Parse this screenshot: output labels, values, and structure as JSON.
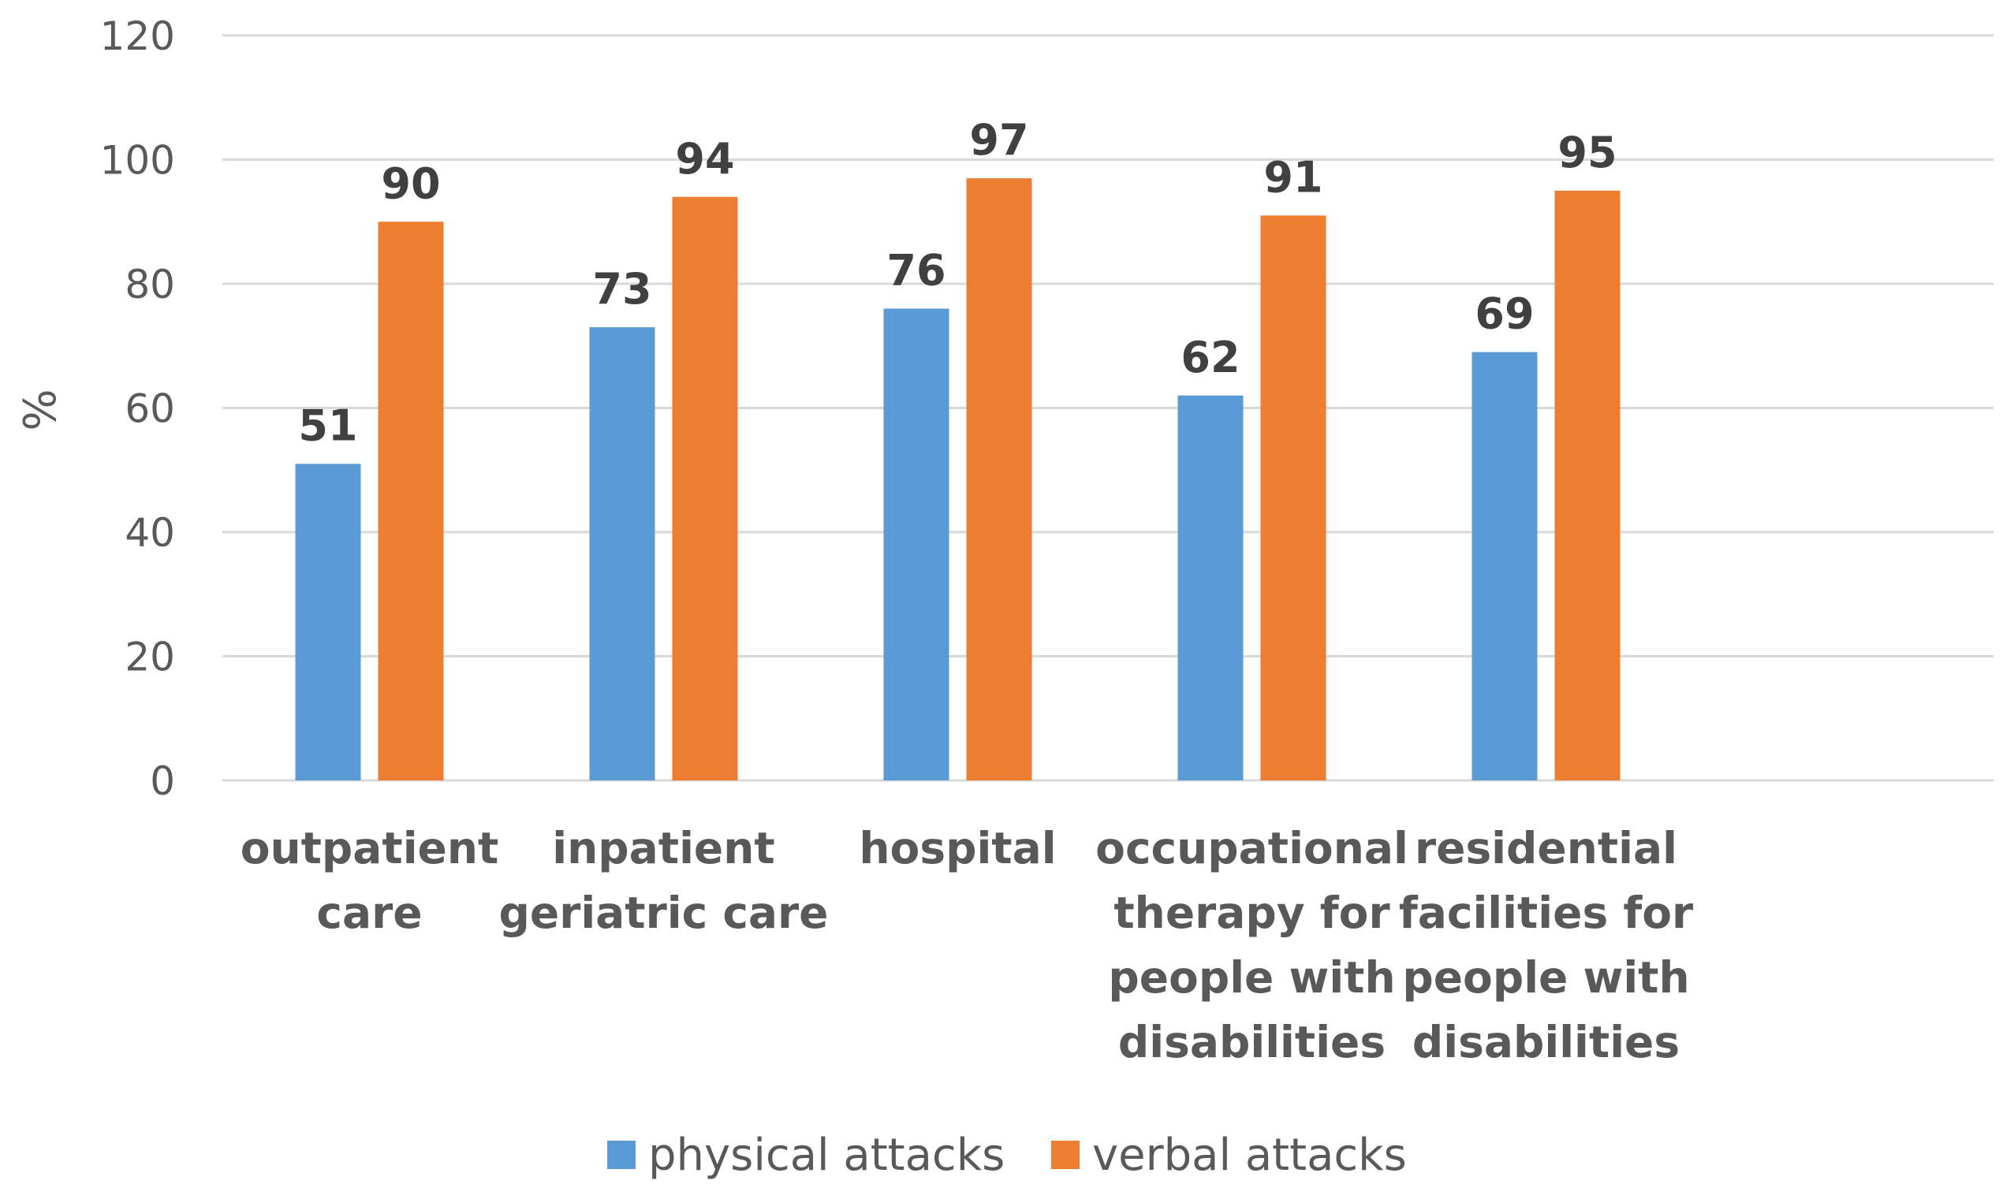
{
  "chart_data": {
    "type": "bar",
    "title": "",
    "xlabel": "",
    "ylabel": "%",
    "ylim": [
      0,
      120
    ],
    "yticks": [
      0,
      20,
      40,
      60,
      80,
      100,
      120
    ],
    "grid": true,
    "legend_position": "bottom",
    "categories": [
      [
        "outpatient",
        "care"
      ],
      [
        "inpatient",
        "geriatric care"
      ],
      [
        "hospital"
      ],
      [
        "occupational",
        "therapy for",
        "people with",
        "disabilities"
      ],
      [
        "residential",
        "facilities for",
        "people with",
        "disabilities"
      ]
    ],
    "series": [
      {
        "name": "physical attacks",
        "color": "#5b9bd5",
        "values": [
          51,
          73,
          76,
          62,
          69
        ]
      },
      {
        "name": "verbal attacks",
        "color": "#ed7d31",
        "values": [
          90,
          94,
          97,
          91,
          95
        ]
      }
    ]
  }
}
